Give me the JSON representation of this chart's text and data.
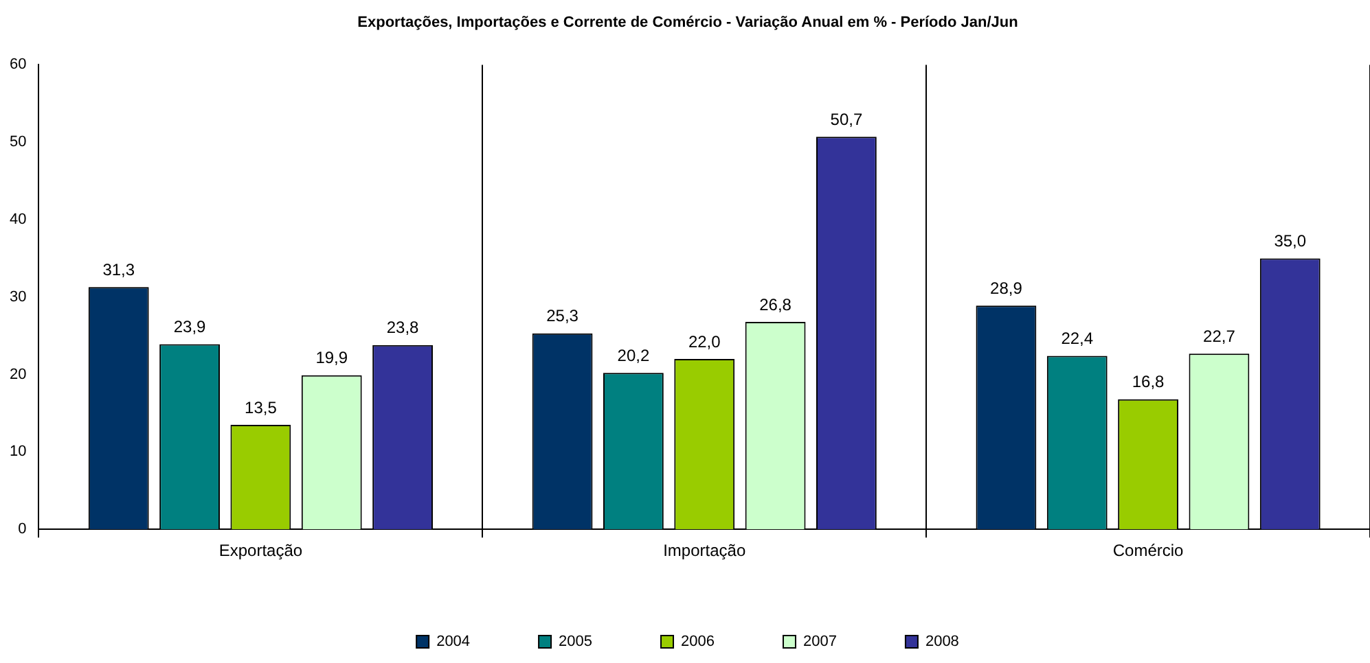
{
  "chart_data": {
    "type": "bar",
    "title": "Exportações, Importações e Corrente de Comércio - Variação Anual em % - Período Jan/Jun",
    "categories": [
      "Exportação",
      "Importação",
      "Comércio"
    ],
    "series": [
      {
        "name": "2004",
        "color": "#003366",
        "values": [
          31.3,
          25.3,
          28.9
        ],
        "value_labels": [
          "31,3",
          "25,3",
          "28,9"
        ]
      },
      {
        "name": "2005",
        "color": "#008080",
        "values": [
          23.9,
          20.2,
          22.4
        ],
        "value_labels": [
          "23,9",
          "20,2",
          "22,4"
        ]
      },
      {
        "name": "2006",
        "color": "#99cc00",
        "values": [
          13.5,
          22.0,
          16.8
        ],
        "value_labels": [
          "13,5",
          "22,0",
          "16,8"
        ]
      },
      {
        "name": "2007",
        "color": "#ccffcc",
        "values": [
          19.9,
          26.8,
          22.7
        ],
        "value_labels": [
          "19,9",
          "26,8",
          "22,7"
        ]
      },
      {
        "name": "2008",
        "color": "#333399",
        "values": [
          23.8,
          50.7,
          35.0
        ],
        "value_labels": [
          "23,8",
          "50,7",
          "35,0"
        ]
      }
    ],
    "ylim": [
      0,
      60
    ],
    "yticks": [
      0,
      10,
      20,
      30,
      40,
      50,
      60
    ],
    "grid": "x",
    "legend": "bottom"
  }
}
